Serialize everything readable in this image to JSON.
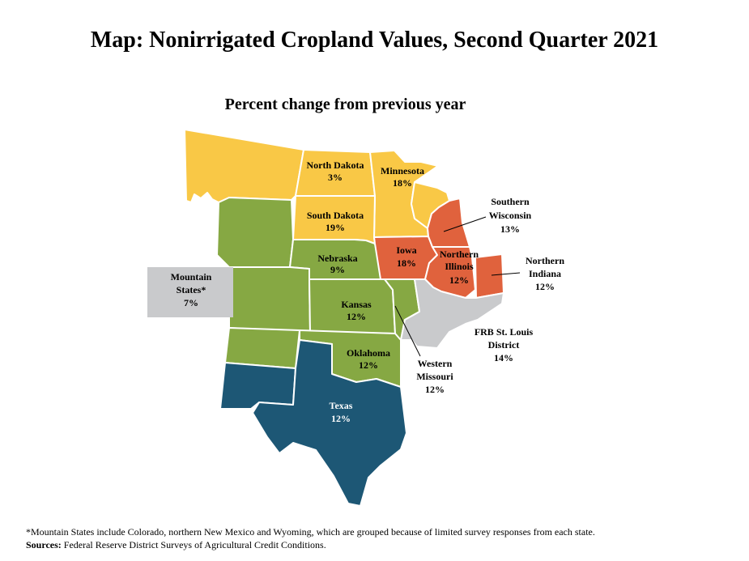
{
  "title": "Map: Nonirrigated Cropland Values, Second Quarter 2021",
  "subtitle": "Percent change from previous year",
  "colors": {
    "yellow": "#f9c846",
    "green": "#86a843",
    "orange": "#e0623d",
    "gray": "#c9cacc",
    "navy": "#1d5775"
  },
  "regions": [
    {
      "id": "north-dakota",
      "name": "North Dakota",
      "value": "3%",
      "color": "yellow"
    },
    {
      "id": "minnesota",
      "name": "Minnesota",
      "value": "18%",
      "color": "yellow"
    },
    {
      "id": "south-dakota",
      "name": "South Dakota",
      "value": "19%",
      "color": "yellow"
    },
    {
      "id": "southern-wisconsin",
      "name_lines": [
        "Southern",
        "Wisconsin"
      ],
      "value": "13%",
      "color": "orange"
    },
    {
      "id": "iowa",
      "name": "Iowa",
      "value": "18%",
      "color": "orange"
    },
    {
      "id": "northern-illinois",
      "name_lines": [
        "Northern",
        "Illinois"
      ],
      "value": "12%",
      "color": "orange"
    },
    {
      "id": "northern-indiana",
      "name_lines": [
        "Northern",
        "Indiana"
      ],
      "value": "12%",
      "color": "orange"
    },
    {
      "id": "nebraska",
      "name": "Nebraska",
      "value": "9%",
      "color": "green"
    },
    {
      "id": "kansas",
      "name": "Kansas",
      "value": "12%",
      "color": "green"
    },
    {
      "id": "oklahoma",
      "name": "Oklahoma",
      "value": "12%",
      "color": "green"
    },
    {
      "id": "western-missouri",
      "name_lines": [
        "Western",
        "Missouri"
      ],
      "value": "12%",
      "color": "green"
    },
    {
      "id": "mountain-states",
      "name_lines": [
        "Mountain",
        "States*"
      ],
      "value": "7%",
      "color": "gray"
    },
    {
      "id": "frb-st-louis",
      "name_lines": [
        "FRB St. Louis",
        "District"
      ],
      "value": "14%",
      "color": "gray"
    },
    {
      "id": "texas",
      "name": "Texas",
      "value": "12%",
      "color": "navy"
    }
  ],
  "footnote": {
    "note": "*Mountain States include Colorado, northern New Mexico and Wyoming, which are grouped because of limited survey responses from each state.",
    "sources_label": "Sources:",
    "sources_text": " Federal Reserve District Surveys of Agricultural Credit Conditions."
  }
}
